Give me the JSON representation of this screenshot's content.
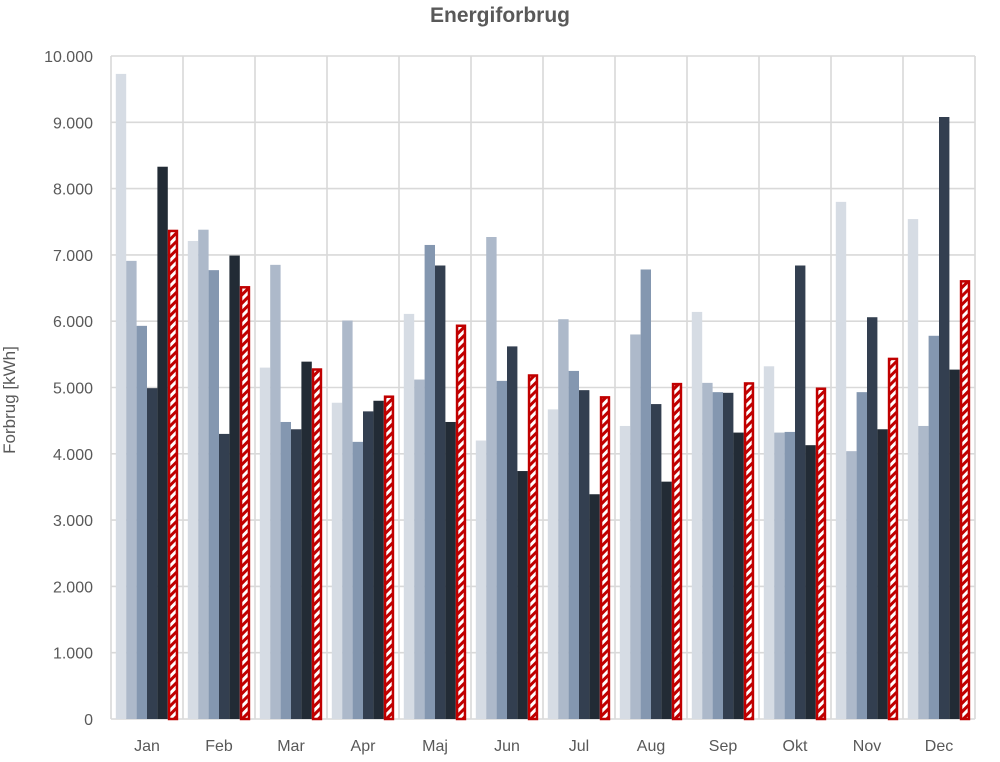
{
  "chart_data": {
    "type": "bar",
    "title": "Energiforbrug",
    "xlabel": "",
    "ylabel": "Forbrug [kWh]",
    "ylim": [
      0,
      10000
    ],
    "yticks": [
      0,
      1000,
      2000,
      3000,
      4000,
      5000,
      6000,
      7000,
      8000,
      9000,
      10000
    ],
    "ytick_labels": [
      "0",
      "1.000",
      "2.000",
      "3.000",
      "4.000",
      "5.000",
      "6.000",
      "7.000",
      "8.000",
      "9.000",
      "10.000"
    ],
    "grid": true,
    "legend": "none",
    "categories": [
      "Jan",
      "Feb",
      "Mar",
      "Apr",
      "Maj",
      "Jun",
      "Jul",
      "Aug",
      "Sep",
      "Okt",
      "Nov",
      "Dec"
    ],
    "series": [
      {
        "color": "#d6dce4",
        "values": [
          9730,
          7210,
          5300,
          4770,
          6110,
          4200,
          4670,
          4420,
          6140,
          5320,
          7800,
          7540
        ]
      },
      {
        "color": "#adb9ca",
        "values": [
          6910,
          7380,
          6850,
          6010,
          5120,
          7270,
          6030,
          5800,
          5070,
          4320,
          4040,
          4420
        ]
      },
      {
        "color": "#8497b0",
        "values": [
          5930,
          6770,
          4480,
          4180,
          7150,
          5100,
          5250,
          6780,
          4930,
          4330,
          4930,
          5780
        ]
      },
      {
        "color": "#333f50",
        "values": [
          4990,
          4300,
          4370,
          4640,
          6840,
          5620,
          4960,
          4750,
          4920,
          6840,
          6060,
          9080
        ]
      },
      {
        "color": "#222b35",
        "values": [
          8330,
          6990,
          5390,
          4800,
          4480,
          3740,
          3390,
          3580,
          4320,
          4130,
          4370,
          5270
        ]
      },
      {
        "color": "#c00000",
        "pattern": "diagonal-hatch",
        "values": [
          7380,
          6530,
          5290,
          4880,
          5950,
          5200,
          4870,
          5070,
          5080,
          5000,
          5450,
          6620
        ]
      }
    ]
  }
}
